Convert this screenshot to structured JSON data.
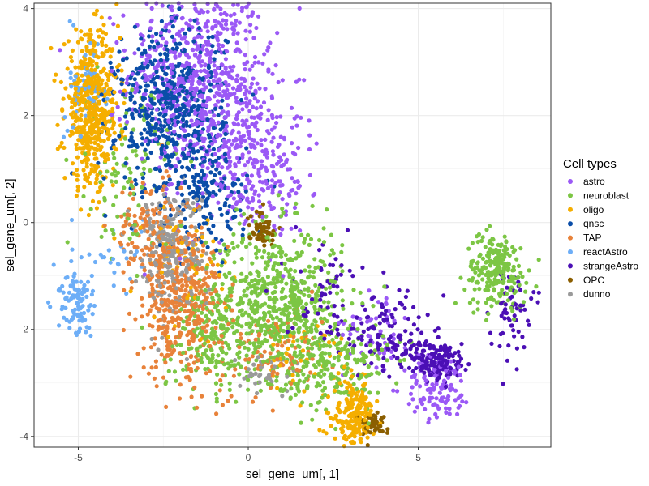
{
  "chart_data": {
    "type": "scatter",
    "title": "",
    "xlabel": "sel_gene_um[, 1]",
    "ylabel": "sel_gene_um[, 2]",
    "xlim": [
      -6.3,
      8.9
    ],
    "ylim": [
      -4.2,
      4.1
    ],
    "x_ticks": [
      -5,
      0,
      5
    ],
    "y_ticks": [
      -4,
      -2,
      0,
      2,
      4
    ],
    "x_tick_labels": [
      "-5",
      "0",
      "5"
    ],
    "y_tick_labels": [
      "-4",
      "-2",
      "0",
      "2",
      "4"
    ],
    "grid": true,
    "legend_position": "right",
    "legend_title": "Cell types",
    "series": [
      {
        "name": "astro",
        "color": "#9B59F6",
        "clusters": [
          {
            "cx": -1.5,
            "cy": 2.8,
            "sx": 1.0,
            "sy": 0.9,
            "n": 650
          },
          {
            "cx": -0.2,
            "cy": 1.4,
            "sx": 0.9,
            "sy": 0.8,
            "n": 300
          },
          {
            "cx": 0.8,
            "cy": 0.6,
            "sx": 0.5,
            "sy": 0.4,
            "n": 60
          },
          {
            "cx": 5.6,
            "cy": -3.1,
            "sx": 0.5,
            "sy": 0.3,
            "n": 120
          },
          {
            "cx": 3.8,
            "cy": -1.9,
            "sx": 0.5,
            "sy": 0.4,
            "n": 50
          }
        ]
      },
      {
        "name": "neuroblast",
        "color": "#7CC644",
        "clusters": [
          {
            "cx": 0.8,
            "cy": -1.5,
            "sx": 1.0,
            "sy": 0.7,
            "n": 650
          },
          {
            "cx": 2.5,
            "cy": -2.7,
            "sx": 0.8,
            "sy": 0.4,
            "n": 200
          },
          {
            "cx": 7.3,
            "cy": -0.9,
            "sx": 0.45,
            "sy": 0.35,
            "n": 220
          },
          {
            "cx": -1.2,
            "cy": -2.2,
            "sx": 0.6,
            "sy": 0.5,
            "n": 150
          },
          {
            "cx": -3.5,
            "cy": 1.0,
            "sx": 0.6,
            "sy": 0.8,
            "n": 100
          }
        ]
      },
      {
        "name": "oligo",
        "color": "#F5AE00",
        "clusters": [
          {
            "cx": -4.6,
            "cy": 2.1,
            "sx": 0.4,
            "sy": 0.7,
            "n": 550
          },
          {
            "cx": 3.1,
            "cy": -3.6,
            "sx": 0.3,
            "sy": 0.3,
            "n": 200
          },
          {
            "cx": -1.8,
            "cy": -0.8,
            "sx": 0.6,
            "sy": 0.6,
            "n": 60
          },
          {
            "cx": 1.5,
            "cy": -2.5,
            "sx": 0.7,
            "sy": 0.4,
            "n": 40
          }
        ]
      },
      {
        "name": "qnsc",
        "color": "#0A4DA8",
        "clusters": [
          {
            "cx": -2.3,
            "cy": 2.1,
            "sx": 0.8,
            "sy": 0.8,
            "n": 550
          },
          {
            "cx": -1.2,
            "cy": 0.5,
            "sx": 0.6,
            "sy": 0.5,
            "n": 150
          }
        ]
      },
      {
        "name": "TAP",
        "color": "#E8823A",
        "clusters": [
          {
            "cx": -1.9,
            "cy": -1.5,
            "sx": 0.6,
            "sy": 0.7,
            "n": 400
          },
          {
            "cx": -2.9,
            "cy": -0.2,
            "sx": 0.5,
            "sy": 0.5,
            "n": 150
          },
          {
            "cx": 0.8,
            "cy": -2.4,
            "sx": 0.8,
            "sy": 0.4,
            "n": 100
          }
        ]
      },
      {
        "name": "reactAstro",
        "color": "#6DAEF7",
        "clusters": [
          {
            "cx": -5.1,
            "cy": -1.5,
            "sx": 0.25,
            "sy": 0.35,
            "n": 100
          },
          {
            "cx": -4.7,
            "cy": 2.6,
            "sx": 0.3,
            "sy": 0.5,
            "n": 60
          },
          {
            "cx": -3.9,
            "cy": -0.6,
            "sx": 0.4,
            "sy": 0.3,
            "n": 25
          }
        ]
      },
      {
        "name": "strangeAstro",
        "color": "#4B0FB5",
        "clusters": [
          {
            "cx": 5.6,
            "cy": -2.6,
            "sx": 0.4,
            "sy": 0.2,
            "n": 150
          },
          {
            "cx": 4.1,
            "cy": -2.1,
            "sx": 0.6,
            "sy": 0.4,
            "n": 120
          },
          {
            "cx": 7.7,
            "cy": -1.6,
            "sx": 0.3,
            "sy": 0.4,
            "n": 60
          },
          {
            "cx": 2.2,
            "cy": -1.3,
            "sx": 0.6,
            "sy": 0.5,
            "n": 60
          }
        ]
      },
      {
        "name": "OPC",
        "color": "#8B5E00",
        "clusters": [
          {
            "cx": 0.4,
            "cy": -0.1,
            "sx": 0.2,
            "sy": 0.15,
            "n": 60
          },
          {
            "cx": 3.7,
            "cy": -3.8,
            "sx": 0.25,
            "sy": 0.12,
            "n": 40
          }
        ]
      },
      {
        "name": "dunno",
        "color": "#9A9A9A",
        "clusters": [
          {
            "cx": -2.3,
            "cy": -0.5,
            "sx": 0.5,
            "sy": 0.6,
            "n": 250
          },
          {
            "cx": 0.4,
            "cy": -2.8,
            "sx": 0.5,
            "sy": 0.2,
            "n": 40
          }
        ]
      }
    ]
  }
}
